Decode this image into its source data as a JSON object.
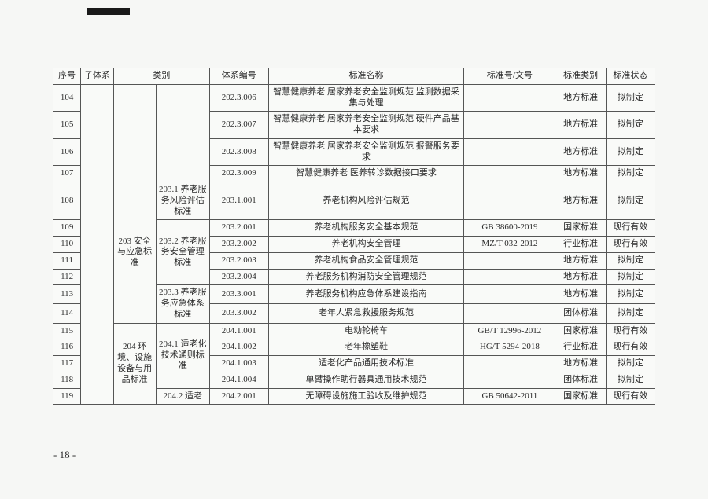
{
  "header": {
    "idx": "序号",
    "subsystem": "子体系",
    "category": "类别",
    "sysCode": "体系编号",
    "stdName": "标准名称",
    "stdNo": "标准号/文号",
    "stdType": "标准类别",
    "stdState": "标准状态"
  },
  "pageNumber": "- 18 -",
  "cat": {
    "c203": "203 安全与应急标准",
    "c204": "204 环境、设施设备与用品标准",
    "s203_1": "203.1 养老服务风险评估标准",
    "s203_2": "203.2 养老服务安全管理标准",
    "s203_3": "203.3 养老服务应急体系标准",
    "s204_1": "204.1 适老化技术通则标准",
    "s204_2": "204.2 适老"
  },
  "rows": [
    {
      "idx": "104",
      "code": "202.3.006",
      "name": "智慧健康养老 居家养老安全监测规范 监测数据采集与处理",
      "no": "",
      "type": "地方标准",
      "state": "拟制定"
    },
    {
      "idx": "105",
      "code": "202.3.007",
      "name": "智慧健康养老 居家养老安全监测规范 硬件产品基本要求",
      "no": "",
      "type": "地方标准",
      "state": "拟制定"
    },
    {
      "idx": "106",
      "code": "202.3.008",
      "name": "智慧健康养老 居家养老安全监测规范 报警服务要求",
      "no": "",
      "type": "地方标准",
      "state": "拟制定"
    },
    {
      "idx": "107",
      "code": "202.3.009",
      "name": "智慧健康养老 医养转诊数据接口要求",
      "no": "",
      "type": "地方标准",
      "state": "拟制定"
    },
    {
      "idx": "108",
      "code": "203.1.001",
      "name": "养老机构风险评估规范",
      "no": "",
      "type": "地方标准",
      "state": "拟制定"
    },
    {
      "idx": "109",
      "code": "203.2.001",
      "name": "养老机构服务安全基本规范",
      "no": "GB 38600-2019",
      "type": "国家标准",
      "state": "现行有效"
    },
    {
      "idx": "110",
      "code": "203.2.002",
      "name": "养老机构安全管理",
      "no": "MZ/T 032-2012",
      "type": "行业标准",
      "state": "现行有效"
    },
    {
      "idx": "111",
      "code": "203.2.003",
      "name": "养老机构食品安全管理规范",
      "no": "",
      "type": "地方标准",
      "state": "拟制定"
    },
    {
      "idx": "112",
      "code": "203.2.004",
      "name": "养老服务机构消防安全管理规范",
      "no": "",
      "type": "地方标准",
      "state": "拟制定"
    },
    {
      "idx": "113",
      "code": "203.3.001",
      "name": "养老服务机构应急体系建设指南",
      "no": "",
      "type": "地方标准",
      "state": "拟制定"
    },
    {
      "idx": "114",
      "code": "203.3.002",
      "name": "老年人紧急救援服务规范",
      "no": "",
      "type": "团体标准",
      "state": "拟制定"
    },
    {
      "idx": "115",
      "code": "204.1.001",
      "name": "电动轮椅车",
      "no": "GB/T 12996-2012",
      "type": "国家标准",
      "state": "现行有效"
    },
    {
      "idx": "116",
      "code": "204.1.002",
      "name": "老年橡塑鞋",
      "no": "HG/T 5294-2018",
      "type": "行业标准",
      "state": "现行有效"
    },
    {
      "idx": "117",
      "code": "204.1.003",
      "name": "适老化产品通用技术标准",
      "no": "",
      "type": "地方标准",
      "state": "拟制定"
    },
    {
      "idx": "118",
      "code": "204.1.004",
      "name": "单臂操作助行器具通用技术规范",
      "no": "",
      "type": "团体标准",
      "state": "拟制定"
    },
    {
      "idx": "119",
      "code": "204.2.001",
      "name": "无障碍设施施工验收及维护规范",
      "no": "GB 50642-2011",
      "type": "国家标准",
      "state": "现行有效"
    }
  ]
}
